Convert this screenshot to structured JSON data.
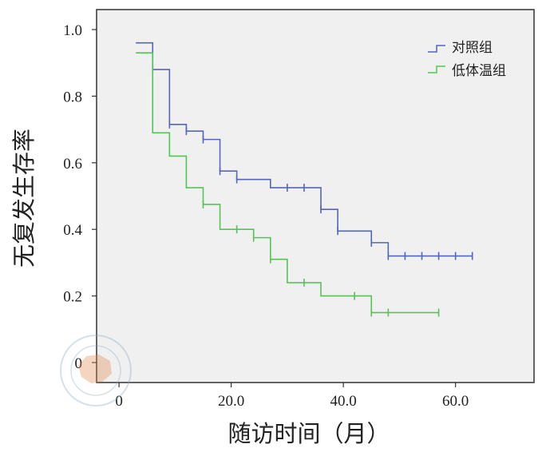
{
  "chart_data": {
    "type": "line",
    "subtype": "kaplan-meier step curves with censoring marks",
    "xlabel": "随访时间（月）",
    "ylabel": "无复发生存率",
    "xlim": [
      -4,
      74
    ],
    "ylim": [
      -0.06,
      1.06
    ],
    "xticks": [
      0,
      20,
      40,
      60
    ],
    "xtick_labels": [
      "0",
      "20.0",
      "40.0",
      "60.0"
    ],
    "yticks": [
      0,
      0.2,
      0.4,
      0.6,
      0.8,
      1.0
    ],
    "ytick_labels": [
      "0",
      "0.2",
      "0.4",
      "0.6",
      "0.8",
      "1.0"
    ],
    "legend_position": "top-right",
    "plot_background": "#f0f0f0",
    "series": [
      {
        "name": "对照组",
        "color": "#5566b8",
        "steps": [
          [
            3,
            0.96
          ],
          [
            6,
            0.88
          ],
          [
            9,
            0.715
          ],
          [
            12,
            0.695
          ],
          [
            15,
            0.67
          ],
          [
            18,
            0.575
          ],
          [
            21,
            0.55
          ],
          [
            27,
            0.525
          ],
          [
            36,
            0.46
          ],
          [
            39,
            0.395
          ],
          [
            45,
            0.36
          ],
          [
            48,
            0.32
          ],
          [
            63,
            0.32
          ]
        ],
        "censored": [
          [
            6,
            0.88
          ],
          [
            9,
            0.715
          ],
          [
            12,
            0.695
          ],
          [
            15,
            0.67
          ],
          [
            18,
            0.575
          ],
          [
            21,
            0.55
          ],
          [
            30,
            0.525
          ],
          [
            33,
            0.525
          ],
          [
            36,
            0.46
          ],
          [
            39,
            0.395
          ],
          [
            45,
            0.36
          ],
          [
            48,
            0.32
          ],
          [
            51,
            0.32
          ],
          [
            54,
            0.32
          ],
          [
            57,
            0.32
          ],
          [
            60,
            0.32
          ],
          [
            63,
            0.32
          ]
        ]
      },
      {
        "name": "低体温组",
        "color": "#55c455",
        "steps": [
          [
            3,
            0.93
          ],
          [
            6,
            0.69
          ],
          [
            9,
            0.62
          ],
          [
            12,
            0.525
          ],
          [
            15,
            0.475
          ],
          [
            18,
            0.4
          ],
          [
            24,
            0.375
          ],
          [
            27,
            0.31
          ],
          [
            30,
            0.24
          ],
          [
            36,
            0.2
          ],
          [
            45,
            0.15
          ],
          [
            57,
            0.15
          ]
        ],
        "censored": [
          [
            15,
            0.475
          ],
          [
            21,
            0.4
          ],
          [
            24,
            0.375
          ],
          [
            27,
            0.31
          ],
          [
            33,
            0.24
          ],
          [
            42,
            0.2
          ],
          [
            45,
            0.15
          ],
          [
            48,
            0.15
          ],
          [
            57,
            0.15
          ]
        ]
      }
    ]
  }
}
